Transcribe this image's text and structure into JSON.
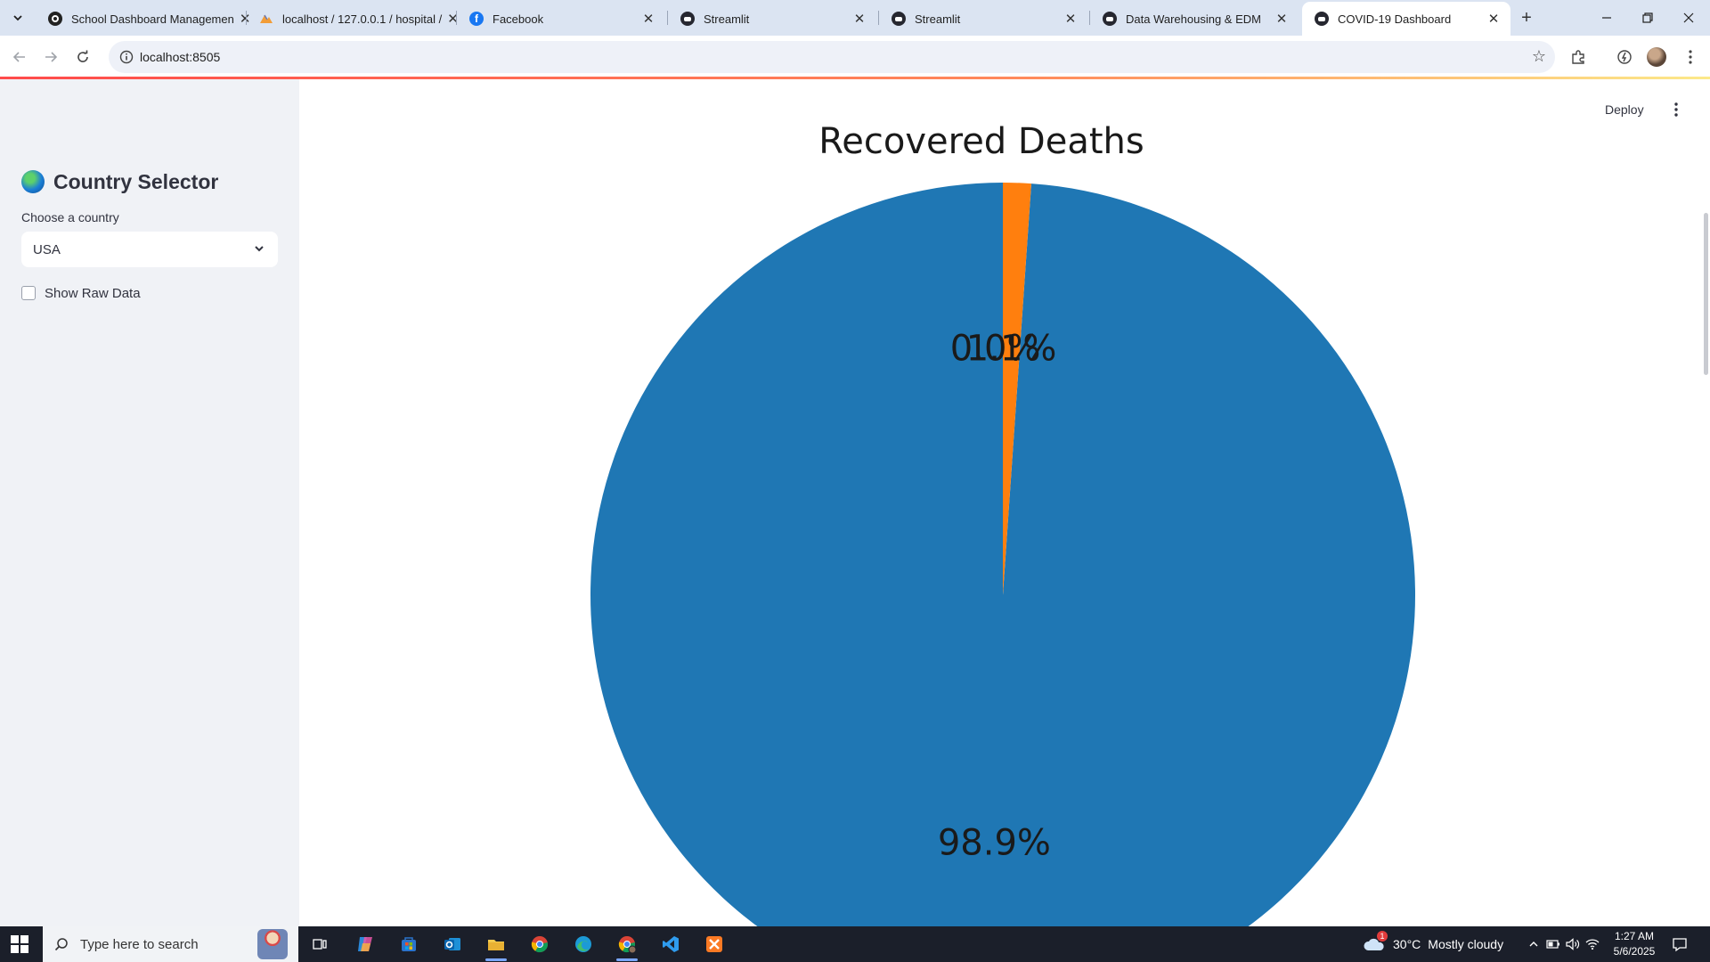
{
  "browser": {
    "tabs": [
      {
        "title": "School Dashboard Managemen",
        "favicon": "circle-logo-icon",
        "active": false
      },
      {
        "title": "localhost / 127.0.0.1 / hospital /",
        "favicon": "phpmyadmin-icon",
        "active": false
      },
      {
        "title": "Facebook",
        "favicon": "facebook-icon",
        "active": false
      },
      {
        "title": "Streamlit",
        "favicon": "streamlit-icon",
        "active": false
      },
      {
        "title": "Streamlit",
        "favicon": "streamlit-icon",
        "active": false
      },
      {
        "title": "Data Warehousing & EDM",
        "favicon": "streamlit-icon",
        "active": false
      },
      {
        "title": "COVID-19 Dashboard",
        "favicon": "streamlit-icon",
        "active": true
      }
    ],
    "url": "localhost:8505"
  },
  "sidebar": {
    "title": "Country Selector",
    "select_label": "Choose a country",
    "selected_country": "USA",
    "checkbox_label": "Show Raw Data",
    "checkbox_checked": false
  },
  "header": {
    "deploy_label": "Deploy"
  },
  "chart_data": {
    "type": "pie",
    "title": "Recovered Deaths",
    "slices": [
      {
        "value": 98.9,
        "label": "98.9%",
        "color": "#1f77b4"
      },
      {
        "value": 1.1,
        "label": "1.1%",
        "color": "#ff7f0e"
      }
    ],
    "overlapping_labels": [
      "0.0%"
    ],
    "start_angle_deg": 90
  },
  "taskbar": {
    "search_placeholder": "Type here to search",
    "weather_temp": "30°C",
    "weather_text": "Mostly cloudy",
    "weather_badge": "1",
    "time": "1:27 AM",
    "date": "5/6/2025"
  }
}
